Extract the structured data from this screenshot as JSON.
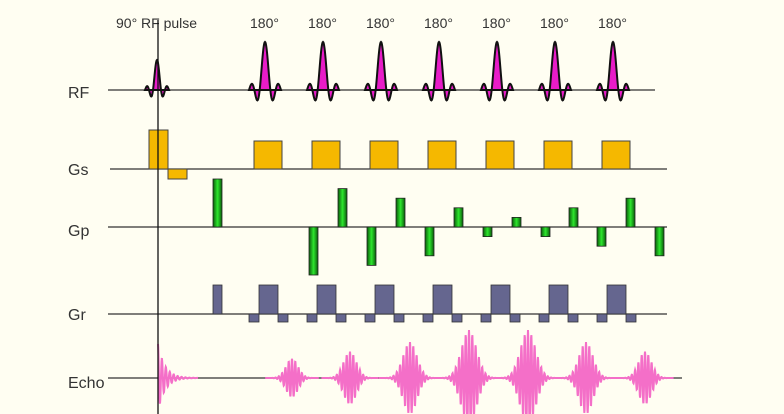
{
  "diagram": {
    "title_pulse_90": "90° RF pulse",
    "refocus_labels": [
      "180°",
      "180°",
      "180°",
      "180°",
      "180°",
      "180°",
      "180°"
    ],
    "rows": {
      "rf": "RF",
      "gs": "Gs",
      "gp": "Gp",
      "gr": "Gr",
      "echo": "Echo"
    },
    "phase_steps": [
      -1.0,
      0.8,
      -0.8,
      0.6,
      -0.6,
      0.4,
      -0.2,
      0.2,
      -0.2,
      0.4,
      -0.4,
      0.6,
      -0.6
    ],
    "echo_amplitudes": [
      0.4,
      0.55,
      0.75,
      1.0,
      1.0,
      0.75,
      0.55
    ],
    "colors": {
      "rf": "#e81cc8",
      "gs": "#f5b800",
      "gp": "#1ec81e",
      "gr": "#65668f",
      "echo": "#f46fc8",
      "axis": "#333333"
    }
  }
}
